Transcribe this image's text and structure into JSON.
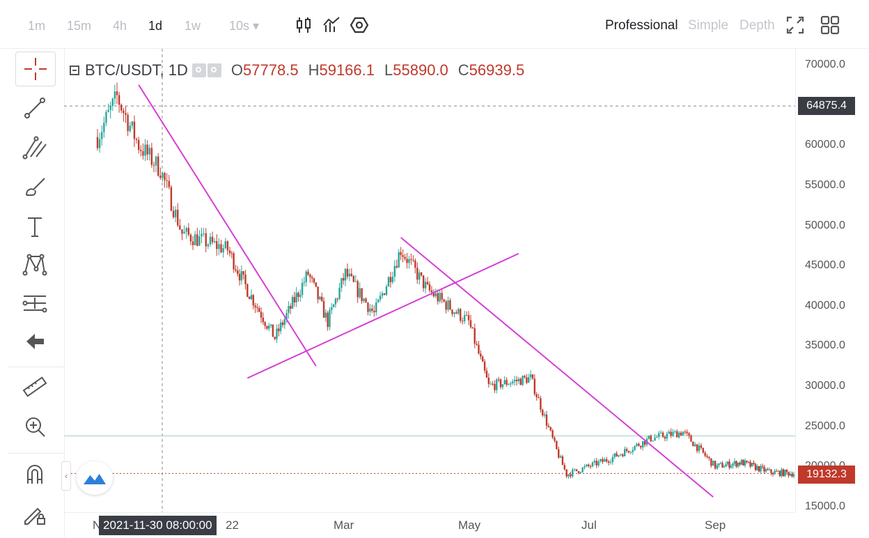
{
  "toolbar": {
    "timeframes": [
      {
        "label": "1m",
        "active": false
      },
      {
        "label": "15m",
        "active": false
      },
      {
        "label": "4h",
        "active": false
      },
      {
        "label": "1d",
        "active": true
      },
      {
        "label": "1w",
        "active": false
      },
      {
        "label": "10s ▾",
        "active": false
      }
    ],
    "chart_icons": [
      "candlestick-icon",
      "indicator-icon",
      "settings-icon"
    ],
    "modes": [
      {
        "label": "Professional",
        "active": true
      },
      {
        "label": "Simple",
        "active": false
      },
      {
        "label": "Depth",
        "active": false
      }
    ],
    "right_icons": [
      "fullscreen-icon",
      "layout-grid-icon"
    ]
  },
  "sidebar": {
    "tools": [
      "crosshair-icon",
      "trend-line-icon",
      "fib-tool-icon",
      "brush-icon",
      "text-icon",
      "pattern-icon",
      "measure-lines-icon",
      "back-arrow-icon",
      "ruler-icon",
      "zoom-in-icon",
      "magnet-icon",
      "lock-drawing-icon"
    ]
  },
  "legend": {
    "symbol": "BTC/USDT, 1D",
    "o_label": "O",
    "o_value": "57778.5",
    "h_label": "H",
    "h_value": "59166.1",
    "l_label": "L",
    "l_value": "55890.0",
    "c_label": "C",
    "c_value": "56939.5"
  },
  "price_axis": {
    "ticks": [
      "70000.0",
      "65000.0",
      "60000.0",
      "55000.0",
      "50000.0",
      "45000.0",
      "40000.0",
      "35000.0",
      "30000.0",
      "25000.0",
      "20000.0",
      "15000.0"
    ],
    "crosshair_price": "64875.4",
    "last_price": "19132.3"
  },
  "time_axis": {
    "ticks": [
      "N",
      "22",
      "Mar",
      "May",
      "Jul",
      "Sep"
    ],
    "crosshair_time": "2021-11-30 08:00:00"
  },
  "colors": {
    "up": "#26a69a",
    "down": "#c0392b",
    "trendline": "#d63ed6",
    "last_price_bg": "#c0392b",
    "crosshair_bg": "#3a3d44"
  },
  "chart_data": {
    "type": "candlestick",
    "symbol": "BTC/USDT",
    "interval": "1D",
    "ylim": [
      15000,
      70000
    ],
    "x_ticks": [
      "N",
      "22",
      "Mar",
      "May",
      "Jul",
      "Sep"
    ],
    "close_path": [
      [
        "2021-11-01",
        61000
      ],
      [
        "2021-11-10",
        66000
      ],
      [
        "2021-11-20",
        60000
      ],
      [
        "2021-11-30",
        57000
      ],
      [
        "2021-12-10",
        49000
      ],
      [
        "2021-12-31",
        47000
      ],
      [
        "2022-01-10",
        42000
      ],
      [
        "2022-01-24",
        36000
      ],
      [
        "2022-02-10",
        44000
      ],
      [
        "2022-02-20",
        38000
      ],
      [
        "2022-03-01",
        44000
      ],
      [
        "2022-03-15",
        39000
      ],
      [
        "2022-03-28",
        47000
      ],
      [
        "2022-04-10",
        42000
      ],
      [
        "2022-04-30",
        38000
      ],
      [
        "2022-05-10",
        30000
      ],
      [
        "2022-05-31",
        31000
      ],
      [
        "2022-06-13",
        22000
      ],
      [
        "2022-06-18",
        19000
      ],
      [
        "2022-07-10",
        21000
      ],
      [
        "2022-07-30",
        23500
      ],
      [
        "2022-08-15",
        24300
      ],
      [
        "2022-08-31",
        20000
      ],
      [
        "2022-09-15",
        20500
      ],
      [
        "2022-10-01",
        19300
      ],
      [
        "2022-10-15",
        19132
      ]
    ]
  }
}
